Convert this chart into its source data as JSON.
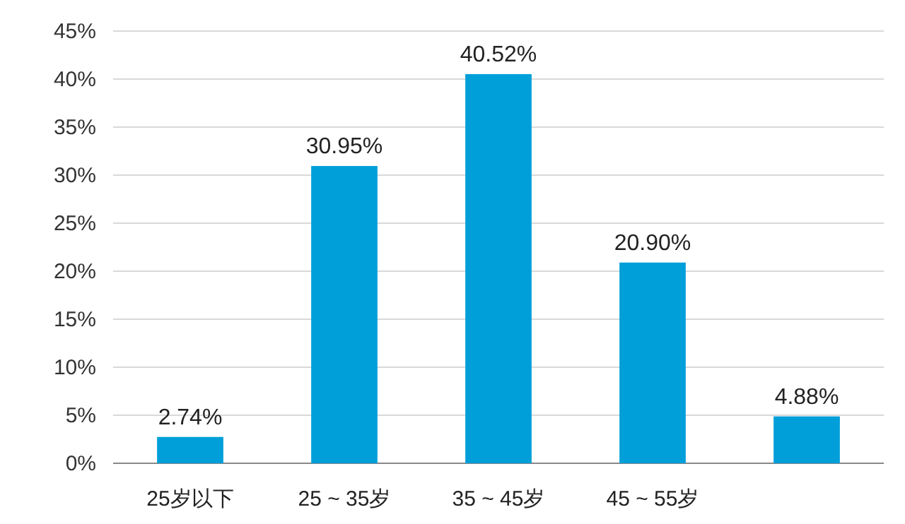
{
  "chart_data": {
    "type": "bar",
    "categories": [
      "25岁以下",
      "25 ~ 35岁",
      "35 ~ 45岁",
      "45 ~ 55岁",
      null
    ],
    "values": [
      2.74,
      30.95,
      40.52,
      20.9,
      4.88
    ],
    "value_labels": [
      "2.74%",
      "30.95%",
      "40.52%",
      "20.90%",
      "4.88%"
    ],
    "color": "#009fd9",
    "ylim": [
      0,
      45
    ],
    "yticks": [
      {
        "value": 0,
        "label": "0%"
      },
      {
        "value": 5,
        "label": "5%"
      },
      {
        "value": 10,
        "label": "10%"
      },
      {
        "value": 15,
        "label": "15%"
      },
      {
        "value": 20,
        "label": "20%"
      },
      {
        "value": 25,
        "label": "25%"
      },
      {
        "value": 30,
        "label": "30%"
      },
      {
        "value": 35,
        "label": "35%"
      },
      {
        "value": 40,
        "label": "40%"
      },
      {
        "value": 45,
        "label": "45%"
      }
    ],
    "grid": "y"
  }
}
